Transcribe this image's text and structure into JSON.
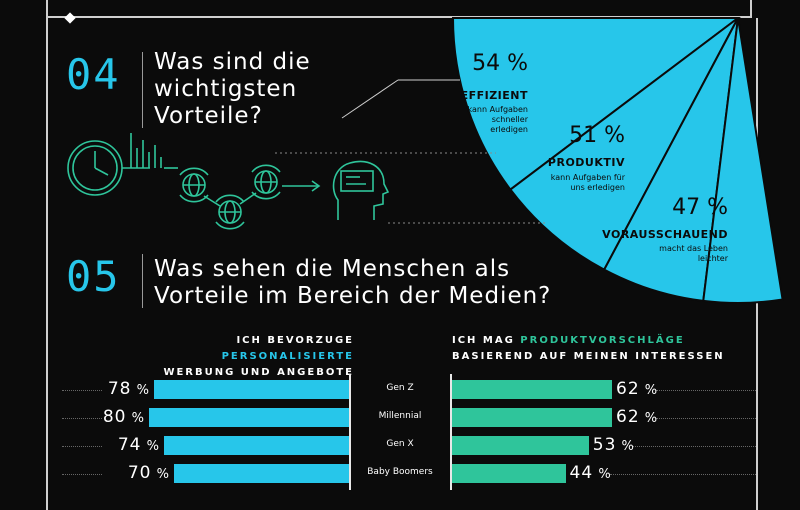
{
  "section4": {
    "number": "04",
    "title_lines": [
      "Was sind die",
      "wichtigsten",
      "Vorteile?"
    ]
  },
  "section5": {
    "number": "05",
    "title_lines": [
      "Was sehen die Menschen als",
      "Vorteile im Bereich der Medien?"
    ]
  },
  "colors": {
    "accent_blue": "#27c6ea",
    "accent_green": "#2fc59b",
    "background": "#0b0b0b"
  },
  "chart_data": [
    {
      "type": "pie",
      "title": "Was sind die wichtigsten Vorteile?",
      "slices": [
        {
          "value": "54 %",
          "label": "EFFIZIENT",
          "desc_lines": [
            "kann Aufgaben",
            "schneller",
            "erledigen"
          ]
        },
        {
          "value": "51 %",
          "label": "PRODUKTIV",
          "desc_lines": [
            "kann Aufgaben für",
            "uns erledigen"
          ]
        },
        {
          "value": "47 %",
          "label": "VORAUSSCHAUEND",
          "desc_lines": [
            "macht das Leben",
            "leichter"
          ]
        }
      ],
      "numeric": [
        54,
        51,
        47
      ]
    },
    {
      "type": "bar",
      "title_parts": [
        "ICH BEVORZUGE ",
        "PERSONALISIERTE",
        "WERBUNG UND ANGEBOTE"
      ],
      "categories": [
        "Gen Z",
        "Millennial",
        "Gen X",
        "Baby Boomers"
      ],
      "values": [
        78,
        80,
        74,
        70
      ],
      "unit": "%"
    },
    {
      "type": "bar",
      "title_parts": [
        "ICH MAG ",
        "PRODUKTVORSCHLÄGE",
        "BASIEREND AUF MEINEN INTERESSEN"
      ],
      "categories": [
        "Gen Z",
        "Millennial",
        "Gen X",
        "Baby Boomers"
      ],
      "values": [
        62,
        62,
        53,
        44
      ],
      "unit": "%"
    }
  ]
}
